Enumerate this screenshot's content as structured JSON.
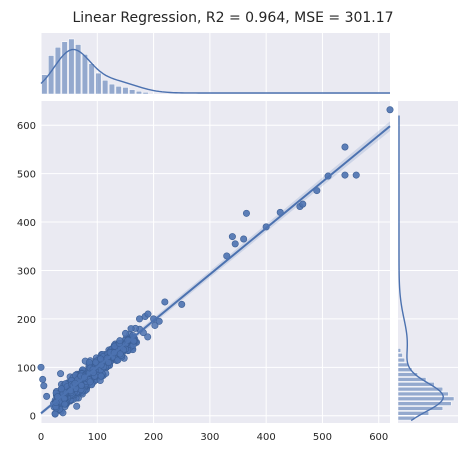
{
  "chart_data": {
    "type": "scatter",
    "title": "Linear Regression, R2 = 0.964, MSE = 301.17",
    "xlabel": "",
    "ylabel": "",
    "xlim": [
      0,
      620
    ],
    "ylim": [
      -15,
      650
    ],
    "x_ticks": [
      0,
      100,
      200,
      300,
      400,
      500,
      600
    ],
    "y_ticks": [
      0,
      100,
      200,
      300,
      400,
      500,
      600
    ],
    "grid": true,
    "regression_line": {
      "x": [
        0,
        620
      ],
      "y": [
        5,
        598
      ]
    },
    "outlier_points": [
      {
        "x": 0,
        "y": 100
      },
      {
        "x": 5,
        "y": 62
      },
      {
        "x": 10,
        "y": 40
      },
      {
        "x": 3,
        "y": 75
      },
      {
        "x": 120,
        "y": 110
      },
      {
        "x": 130,
        "y": 130
      },
      {
        "x": 140,
        "y": 155
      },
      {
        "x": 150,
        "y": 170
      },
      {
        "x": 160,
        "y": 180
      },
      {
        "x": 175,
        "y": 200
      },
      {
        "x": 185,
        "y": 205
      },
      {
        "x": 190,
        "y": 210
      },
      {
        "x": 200,
        "y": 200
      },
      {
        "x": 210,
        "y": 195
      },
      {
        "x": 220,
        "y": 235
      },
      {
        "x": 250,
        "y": 230
      },
      {
        "x": 330,
        "y": 330
      },
      {
        "x": 340,
        "y": 370
      },
      {
        "x": 345,
        "y": 355
      },
      {
        "x": 360,
        "y": 365
      },
      {
        "x": 365,
        "y": 418
      },
      {
        "x": 400,
        "y": 390
      },
      {
        "x": 425,
        "y": 420
      },
      {
        "x": 460,
        "y": 432
      },
      {
        "x": 465,
        "y": 437
      },
      {
        "x": 490,
        "y": 465
      },
      {
        "x": 510,
        "y": 495
      },
      {
        "x": 540,
        "y": 555
      },
      {
        "x": 540,
        "y": 497
      },
      {
        "x": 560,
        "y": 497
      },
      {
        "x": 620,
        "y": 632
      }
    ],
    "x_marginal_histogram": {
      "bins": [
        0,
        12,
        24,
        36,
        48,
        60,
        72,
        84,
        96,
        108,
        120,
        132,
        144,
        156,
        168,
        180,
        192
      ],
      "heights": [
        0.35,
        0.7,
        0.85,
        0.95,
        1.0,
        0.9,
        0.72,
        0.55,
        0.38,
        0.25,
        0.18,
        0.14,
        0.12,
        0.08,
        0.05,
        0.03
      ]
    },
    "y_marginal_histogram": {
      "bins": [
        -10,
        0,
        10,
        20,
        30,
        40,
        50,
        60,
        70,
        80,
        90,
        100,
        110,
        120,
        130,
        140
      ],
      "heights": [
        0.3,
        0.55,
        0.8,
        0.95,
        1.0,
        0.9,
        0.8,
        0.65,
        0.5,
        0.35,
        0.25,
        0.18,
        0.12,
        0.08,
        0.05
      ]
    },
    "colors": {
      "background": "#eaeaf2",
      "points": "#4c72b0",
      "line": "#4c72b0",
      "histogram": "#4c72b0",
      "grid": "#ffffff"
    }
  }
}
